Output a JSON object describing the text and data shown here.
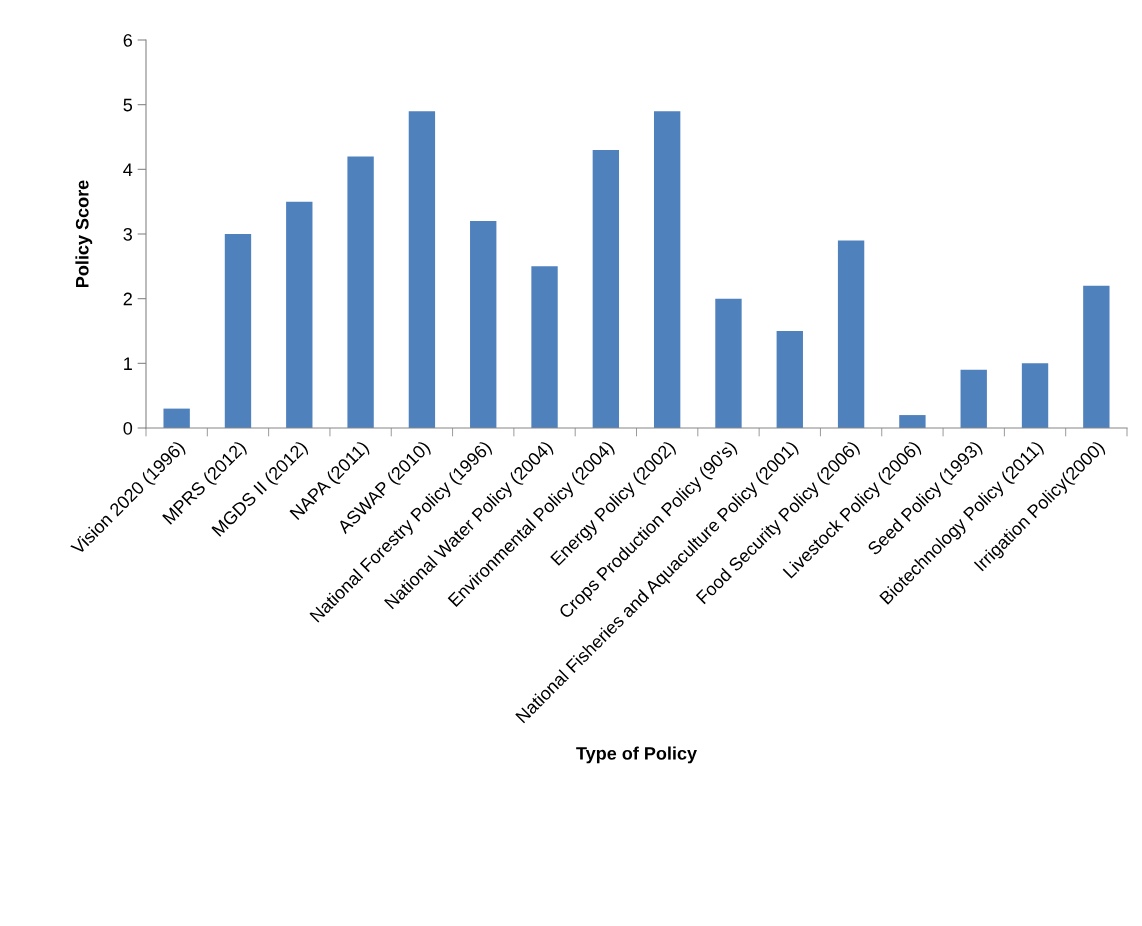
{
  "chart_data": {
    "type": "bar",
    "xlabel": "Type of Policy",
    "ylabel": "Policy Score",
    "categories": [
      "Vision 2020 (1996)",
      "MPRS (2012)",
      "MGDS II (2012)",
      "NAPA (2011)",
      "ASWAP (2010)",
      "National Forestry Policy (1996)",
      "National Water Policy (2004)",
      "Environmental Policy (2004)",
      "Energy Policy (2002)",
      "Crops Production Policy (90's)",
      "National Fisheries and Aquaculture Policy (2001)",
      "Food Security Policy (2006)",
      "Livestock Policy (2006)",
      "Seed Policy (1993)",
      "Biotechnology Policy (2011)",
      "Irrigation Policy(2000)"
    ],
    "values": [
      0.3,
      3.0,
      3.5,
      4.2,
      4.9,
      3.2,
      2.5,
      4.3,
      4.9,
      2.0,
      1.5,
      2.9,
      0.2,
      0.9,
      1.0,
      2.2
    ],
    "color": "#4f81bd",
    "ylim": [
      0,
      6
    ],
    "yticks": [
      0,
      1,
      2,
      3,
      4,
      5,
      6
    ],
    "grid": false,
    "legend": false
  }
}
